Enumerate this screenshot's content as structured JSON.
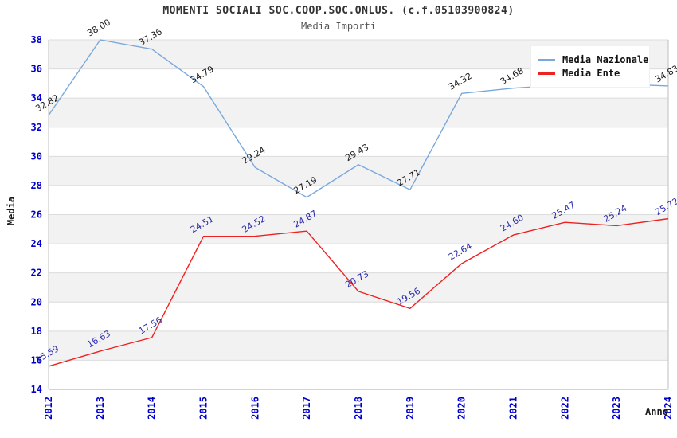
{
  "header": {
    "title": "MOMENTI SOCIALI SOC.COOP.SOC.ONLUS. (c.f.05103900824)",
    "subtitle": "Media Importi"
  },
  "axes": {
    "y_label": "Media",
    "x_label": "Anno",
    "y_ticks": [
      "14",
      "16",
      "18",
      "20",
      "22",
      "24",
      "26",
      "28",
      "30",
      "32",
      "34",
      "36",
      "38"
    ],
    "x_ticks": [
      "2012",
      "2013",
      "2014",
      "2015",
      "2016",
      "2017",
      "2018",
      "2019",
      "2020",
      "2021",
      "2022",
      "2023",
      "2024"
    ]
  },
  "legend": {
    "items": [
      {
        "label": "Media Nazionale",
        "color": "#79a9dc"
      },
      {
        "label": "Media Ente",
        "color": "#ee2222"
      }
    ]
  },
  "chart_data": {
    "type": "line",
    "x": [
      2012,
      2013,
      2014,
      2015,
      2016,
      2017,
      2018,
      2019,
      2020,
      2021,
      2022,
      2023,
      2024
    ],
    "series": [
      {
        "name": "Media Nazionale",
        "color": "#79a9dc",
        "label_color": "#1a1a1a",
        "values": [
          32.82,
          38.0,
          37.36,
          34.79,
          29.24,
          27.19,
          29.43,
          27.71,
          34.32,
          34.68,
          34.91,
          34.97,
          34.83
        ],
        "labels": [
          "32.82",
          "38.00",
          "37.36",
          "34.79",
          "29.24",
          "27.19",
          "29.43",
          "27.71",
          "34.32",
          "34.68",
          null,
          null,
          "34.83"
        ]
      },
      {
        "name": "Media Ente",
        "color": "#ee2222",
        "label_color": "#2a2aad",
        "values": [
          15.59,
          16.63,
          17.56,
          24.51,
          24.52,
          24.87,
          20.73,
          19.56,
          22.64,
          24.6,
          25.47,
          25.24,
          25.72
        ],
        "labels": [
          "15.59",
          "16.63",
          "17.56",
          "24.51",
          "24.52",
          "24.87",
          "20.73",
          "19.56",
          "22.64",
          "24.60",
          "25.47",
          "25.24",
          "25.72"
        ]
      }
    ],
    "ylim": [
      14,
      38
    ],
    "ytick_step": 2,
    "xlim": [
      2012,
      2024
    ],
    "grid": true,
    "band_fill": "#f2f2f2",
    "legend_position": "top-right"
  },
  "colors": {
    "tick_label": "#0000cc",
    "grid_line": "#dcdcdc",
    "spine": "#bfbfbf",
    "band": "#f2f2f2",
    "background": "#ffffff",
    "title": "#333333",
    "subtitle": "#555555"
  }
}
